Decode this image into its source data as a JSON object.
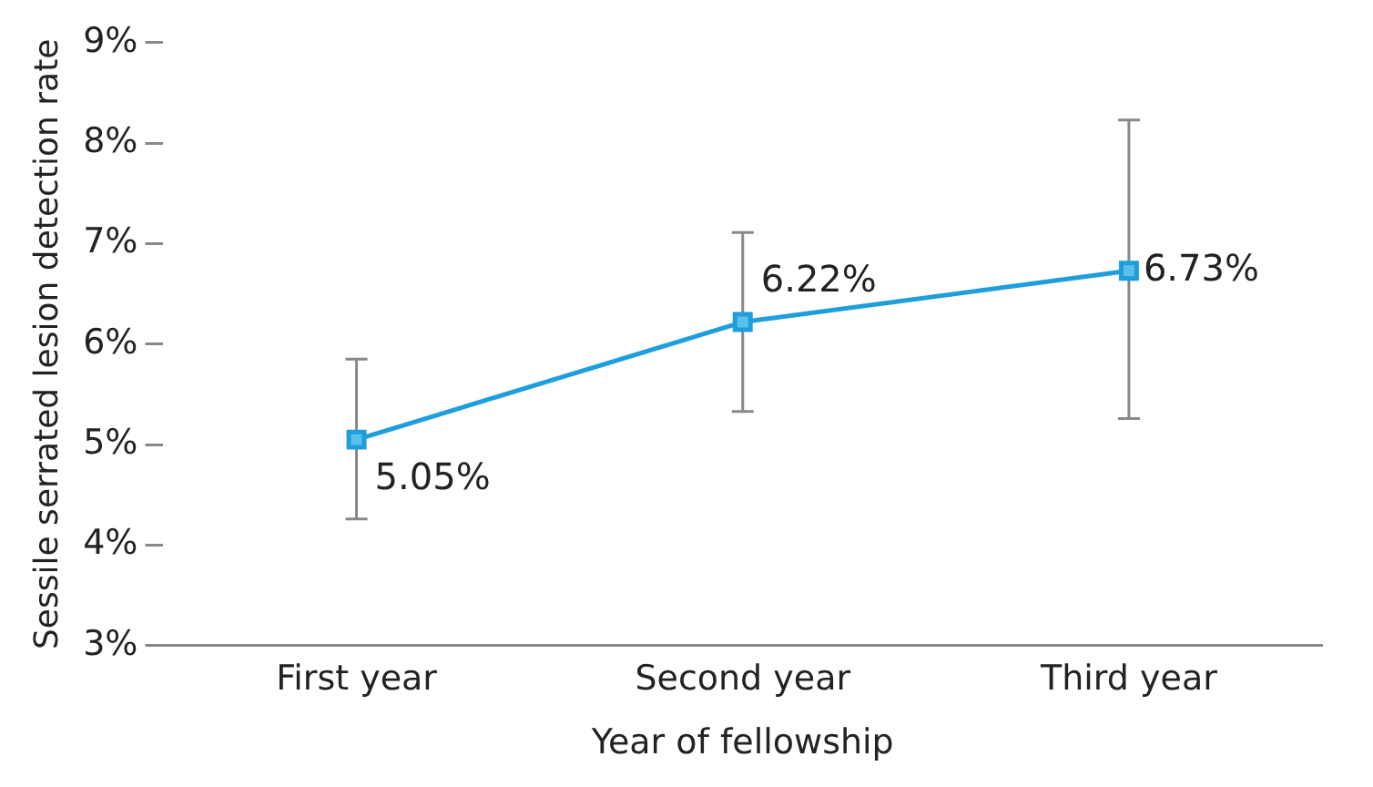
{
  "chart_data": {
    "type": "line",
    "xlabel": "Year of fellowship",
    "ylabel": "Sessile serrated lesion detection rate",
    "categories": [
      "First year",
      "Second year",
      "Third year"
    ],
    "series": [
      {
        "color": "#1e9fdc",
        "values": [
          5.05,
          6.22,
          6.73
        ],
        "errors": [
          [
            4.26,
            5.85
          ],
          [
            5.33,
            7.11
          ],
          [
            5.26,
            8.23
          ]
        ],
        "value_labels": [
          "5.05%",
          "6.22%",
          "6.73%"
        ]
      }
    ],
    "ylim": [
      3,
      9
    ],
    "yticks": [
      {
        "value": 3,
        "label": "3%"
      },
      {
        "value": 4,
        "label": "4%"
      },
      {
        "value": 5,
        "label": "5%"
      },
      {
        "value": 6,
        "label": "6%"
      },
      {
        "value": 7,
        "label": "7%"
      },
      {
        "value": 8,
        "label": "8%"
      },
      {
        "value": 9,
        "label": "9%"
      }
    ],
    "marker": "square",
    "line_style": "solid",
    "legend": false
  }
}
